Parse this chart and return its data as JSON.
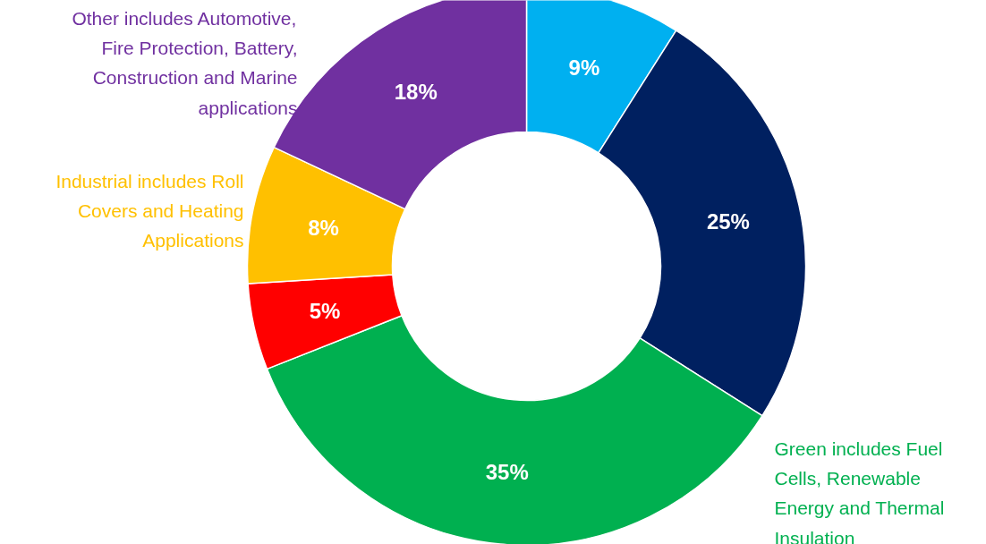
{
  "chart_data": {
    "type": "donut",
    "categories": [
      null,
      null,
      null,
      null,
      null,
      null
    ],
    "values": [
      9,
      25,
      35,
      5,
      8,
      18
    ],
    "colors": [
      "#00b0f0",
      "#002060",
      "#00b050",
      "#ff0000",
      "#ffc000",
      "#7030a0"
    ],
    "value_labels": [
      "9%",
      "25%",
      "35%",
      "5%",
      "8%",
      "18%"
    ],
    "annotations": [
      "Other includes Automotive,\nFire Protection, Battery,\nConstruction and Marine\napplications",
      "Industrial includes Roll\nCovers and Heating\nApplications",
      "Green includes Fuel\nCells, Renewable\nEnergy and Thermal\nInsulation"
    ],
    "data_labels": true
  }
}
